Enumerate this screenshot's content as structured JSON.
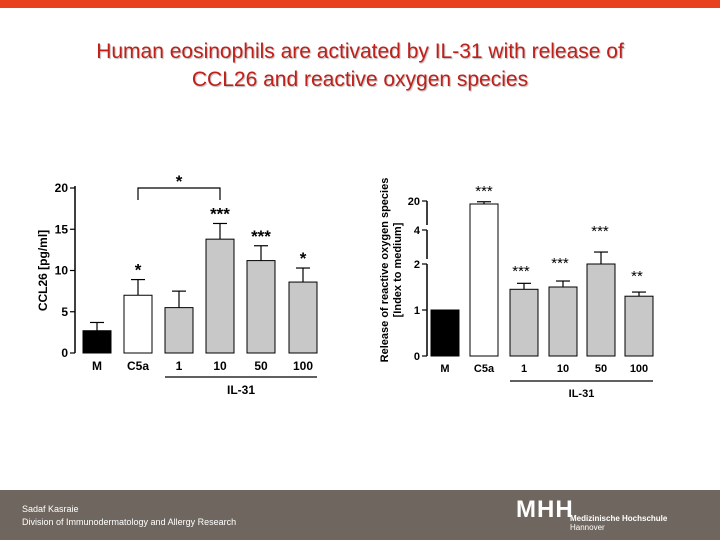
{
  "slide": {
    "title_line1": "Human eosinophils are activated by IL-31 with release of",
    "title_line2": "CCL26 and reactive oxygen species",
    "accent_color": "#e8411f",
    "title_color": "#c0201a",
    "footer_color": "#6f675f"
  },
  "footer": {
    "author": "Sadaf Kasraie",
    "division": "Division of Immunodermatology and Allergy Research",
    "logo_mark": "MHH",
    "logo_name": "Medizinische Hochschule",
    "logo_city": "Hannover"
  },
  "chart_data": [
    {
      "type": "bar",
      "ylabel": "CCL26 [pg/ml]",
      "group_label": "IL-31",
      "categories": [
        "M",
        "C5a",
        "1",
        "10",
        "50",
        "100"
      ],
      "values": [
        2.7,
        7.0,
        5.5,
        13.8,
        11.2,
        8.6
      ],
      "errors": [
        1.0,
        1.9,
        2.0,
        1.9,
        1.8,
        1.7
      ],
      "colors": [
        "#000000",
        "#ffffff",
        "#c8c8c8",
        "#c8c8c8",
        "#c8c8c8",
        "#c8c8c8"
      ],
      "significance": [
        "",
        "*",
        "",
        "***",
        "***",
        "*"
      ],
      "bracket": {
        "from": 1,
        "to": 3,
        "label": "*"
      },
      "ylim": [
        0,
        20
      ],
      "yticks": [
        "0",
        "5",
        "10",
        "15",
        "20"
      ],
      "group_span": [
        2,
        5
      ]
    },
    {
      "type": "bar",
      "ylabel": "Release of reactive oxygen species",
      "ylabel2": "[Index to medium]",
      "group_label": "IL-31",
      "categories": [
        "M",
        "C5a",
        "1",
        "10",
        "50",
        "100"
      ],
      "values": [
        1.0,
        18.0,
        1.45,
        1.5,
        2.0,
        1.3
      ],
      "errors": [
        0,
        1.5,
        0.13,
        0.13,
        0.48,
        0.09
      ],
      "colors": [
        "#000000",
        "#ffffff",
        "#c8c8c8",
        "#c8c8c8",
        "#c8c8c8",
        "#c8c8c8"
      ],
      "significance": [
        "",
        "***",
        "***",
        "***",
        "***",
        "**"
      ],
      "axis_breaks": [
        "2-4",
        "4-20"
      ],
      "yticks": [
        "0",
        "1",
        "2",
        "4",
        "20"
      ],
      "group_span": [
        2,
        5
      ]
    }
  ]
}
